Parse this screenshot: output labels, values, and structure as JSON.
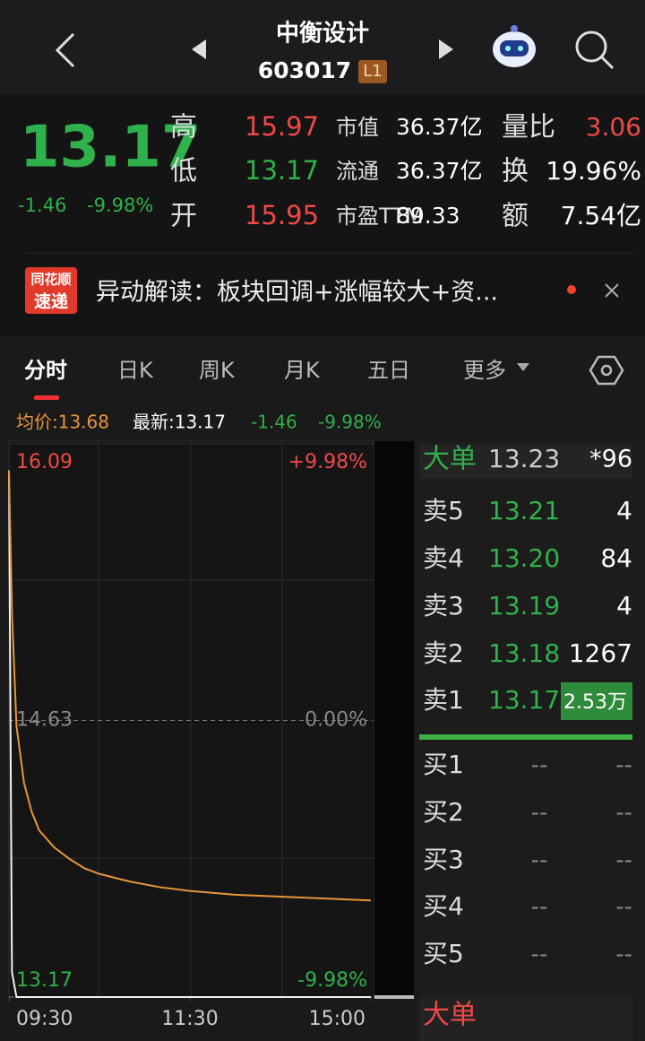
{
  "header": {
    "title": "中衡设计",
    "code": "603017",
    "badge": "L1"
  },
  "quote": {
    "price": "13.17",
    "change": "-1.46",
    "change_pct": "-9.98%",
    "stats": [
      [
        {
          "label": "高",
          "value": "15.97",
          "color": "#f04848"
        },
        {
          "label": "市值",
          "value": "36.37亿",
          "color": "#ffffff"
        },
        {
          "label": "量比",
          "value": "3.06",
          "color": "#f04848"
        }
      ],
      [
        {
          "label": "低",
          "value": "13.17",
          "color": "#2fb14b"
        },
        {
          "label": "流通",
          "value": "36.37亿",
          "color": "#ffffff"
        },
        {
          "label": "换",
          "value": "19.96%",
          "color": "#ffffff"
        }
      ],
      [
        {
          "label": "开",
          "value": "15.95",
          "color": "#f04848"
        },
        {
          "label": "市盈TTM",
          "value": "89.33",
          "color": "#ffffff"
        },
        {
          "label": "额",
          "value": "7.54亿",
          "color": "#ffffff"
        }
      ]
    ]
  },
  "news": {
    "logo_top": "同花顺",
    "logo_bottom": "速递",
    "text": "异动解读：板块回调+涨幅较大+资..."
  },
  "tabs": [
    "分时",
    "日K",
    "周K",
    "月K",
    "五日",
    "更多"
  ],
  "info": {
    "avg": "均价:13.68",
    "latest": "最新:13.17",
    "change": "-1.46",
    "change_pct": "-9.98%"
  },
  "chart": {
    "type": "line",
    "ylim": [
      13.17,
      16.09
    ],
    "yticks": [
      13.17,
      14.63,
      16.09
    ],
    "y2lim": [
      -9.98,
      9.98
    ],
    "y2ticks": [
      {
        "value": -9.98,
        "label": "-9.98%"
      },
      {
        "value": 0,
        "label": "0.00%"
      },
      {
        "value": 9.98,
        "label": "+9.98%"
      }
    ],
    "xlim": [
      0,
      240
    ],
    "xticks": [
      {
        "value": 0,
        "label": "09:30"
      },
      {
        "value": 120,
        "label": "11:30"
      },
      {
        "value": 240,
        "label": "15:00"
      }
    ],
    "x": [
      0,
      2,
      5,
      10,
      15,
      20,
      30,
      40,
      50,
      60,
      80,
      100,
      120,
      150,
      180,
      210,
      240
    ],
    "series": [
      {
        "color": "#f2f2f2",
        "values": [
          15.95,
          13.3,
          13.17,
          13.17,
          13.17,
          13.17,
          13.17,
          13.17,
          13.17,
          13.17,
          13.17,
          13.17,
          13.17,
          13.17,
          13.17,
          13.17,
          13.17
        ]
      },
      {
        "color": "#e8953a",
        "values": [
          15.95,
          15.2,
          14.6,
          14.3,
          14.15,
          14.05,
          13.96,
          13.9,
          13.85,
          13.82,
          13.78,
          13.75,
          13.73,
          13.71,
          13.7,
          13.69,
          13.68
        ]
      }
    ]
  },
  "order_book": {
    "big_order": {
      "label": "大单",
      "price": "13.23",
      "volume": "*96"
    },
    "asks": [
      {
        "label": "卖5",
        "price": "13.21",
        "volume": "4"
      },
      {
        "label": "卖4",
        "price": "13.20",
        "volume": "84"
      },
      {
        "label": "卖3",
        "price": "13.19",
        "volume": "4"
      },
      {
        "label": "卖2",
        "price": "13.18",
        "volume": "1267"
      },
      {
        "label": "卖1",
        "price": "13.17",
        "volume": "2.53万"
      }
    ],
    "bids": [
      {
        "label": "买1",
        "price": "--",
        "volume": "--"
      },
      {
        "label": "买2",
        "price": "--",
        "volume": "--"
      },
      {
        "label": "买3",
        "price": "--",
        "volume": "--"
      },
      {
        "label": "买4",
        "price": "--",
        "volume": "--"
      },
      {
        "label": "买5",
        "price": "--",
        "volume": "--"
      }
    ],
    "footer": "大单"
  }
}
